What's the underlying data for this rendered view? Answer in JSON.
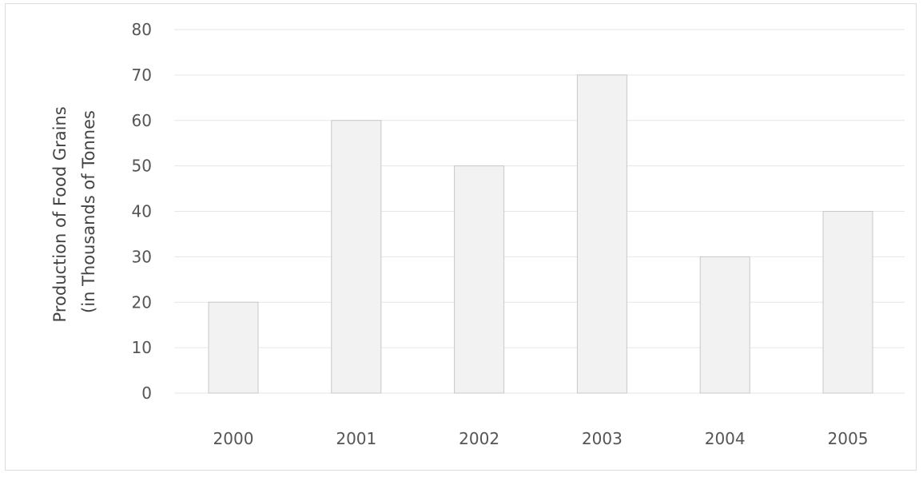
{
  "chart_data": {
    "type": "bar",
    "title": "",
    "xlabel": "",
    "ylabel": [
      "Production of Food Grains",
      "(in Thousands of Tonnes"
    ],
    "categories": [
      "2000",
      "2001",
      "2002",
      "2003",
      "2004",
      "2005"
    ],
    "values": [
      20,
      60,
      50,
      70,
      30,
      40
    ],
    "ylim": [
      0,
      80
    ],
    "yticks": [
      0,
      10,
      20,
      30,
      40,
      50,
      60,
      70,
      80
    ],
    "grid": true,
    "legend": "none",
    "colors": {
      "bar_fill": "#f2f2f2",
      "bar_stroke": "#c8c8c8",
      "grid": "#e6e6e6",
      "text": "#555555"
    }
  }
}
